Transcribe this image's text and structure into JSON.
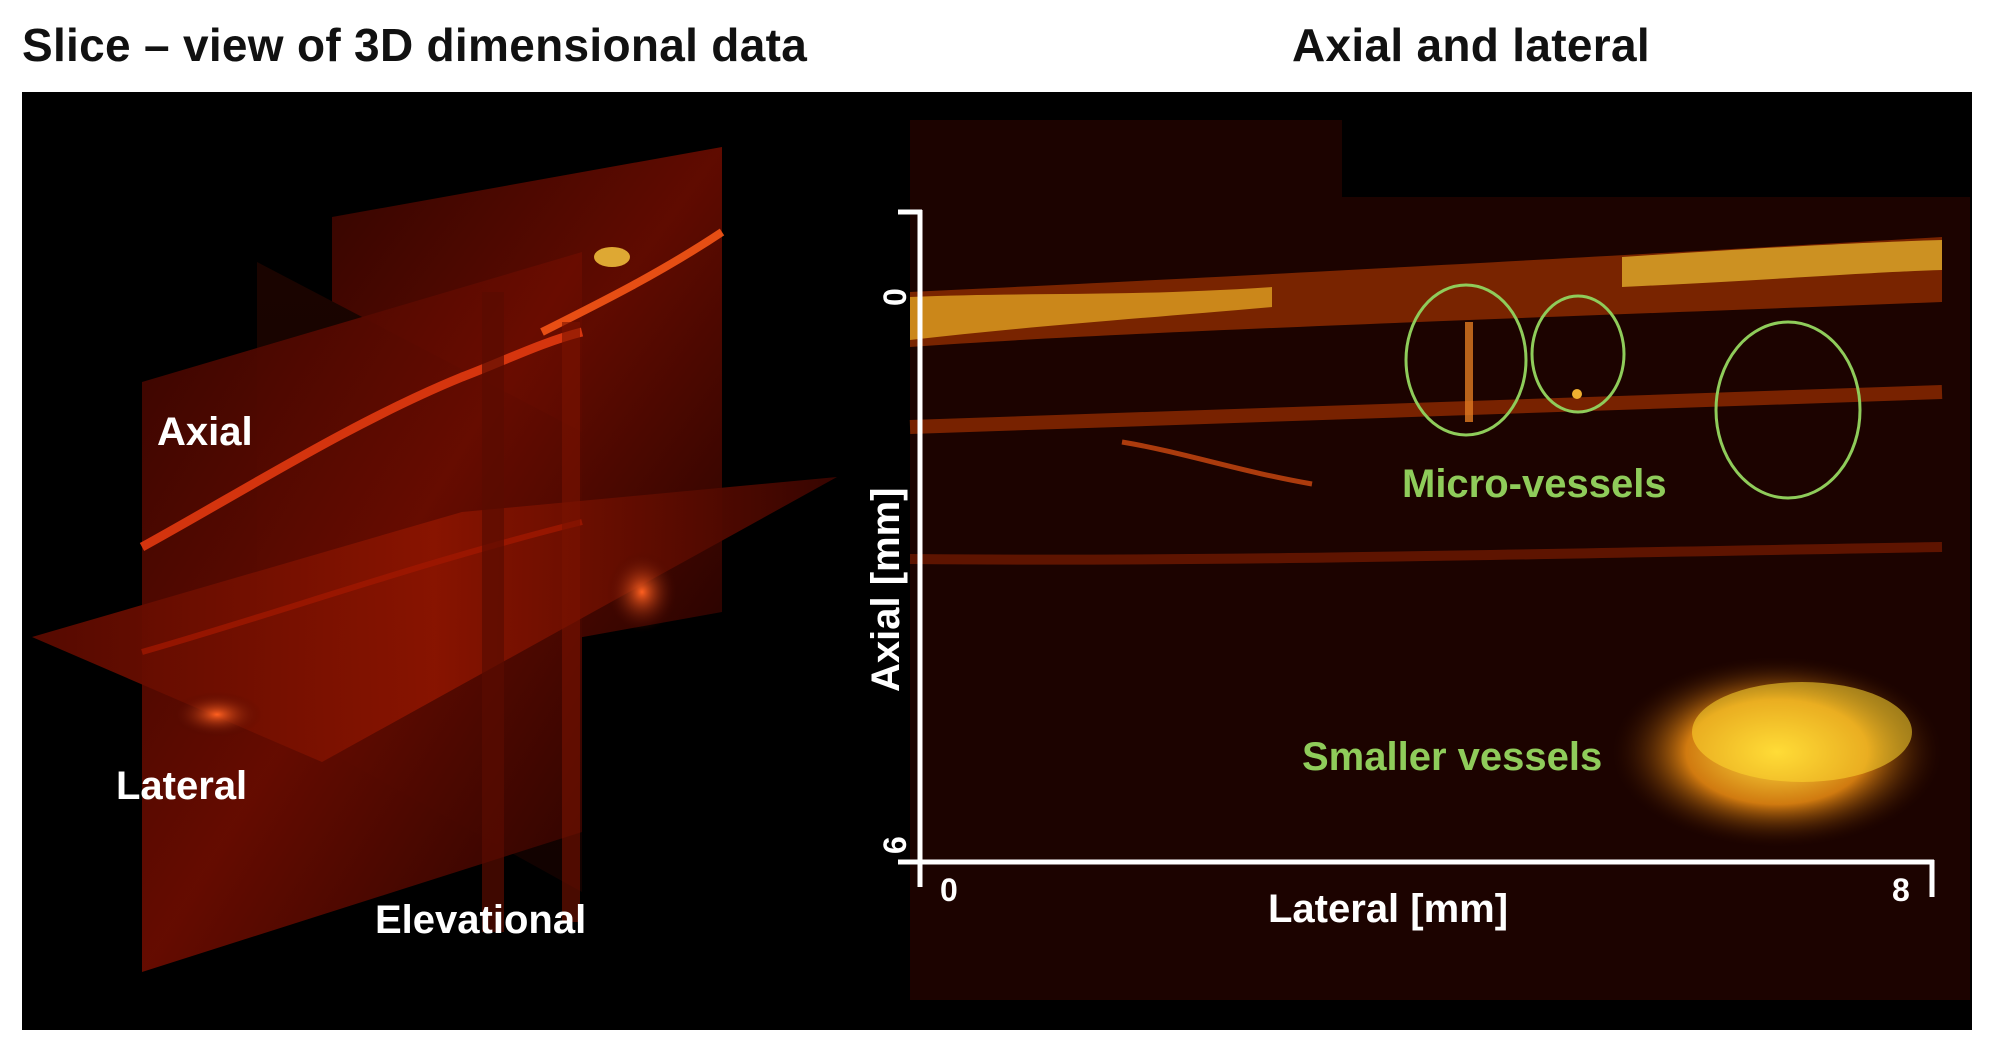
{
  "titles": {
    "left": "Slice – view of 3D dimensional data",
    "right": "Axial and lateral"
  },
  "left_panel": {
    "labels": {
      "axial": "Axial",
      "lateral": "Lateral",
      "elevational": "Elevational"
    }
  },
  "right_panel": {
    "x_axis": {
      "label": "Lateral [mm]",
      "tick_min": "0",
      "tick_max": "8"
    },
    "y_axis": {
      "label": "Axial [mm]",
      "tick_min": "0",
      "tick_max": "6"
    },
    "annotations": {
      "micro_vessels": "Micro-vessels",
      "smaller_vessels": "Smaller vessels"
    }
  },
  "colors": {
    "background": "#000000",
    "annotation_green": "#8fcc5a",
    "hot_red": "#c01800",
    "hot_yellow": "#ffd020"
  }
}
